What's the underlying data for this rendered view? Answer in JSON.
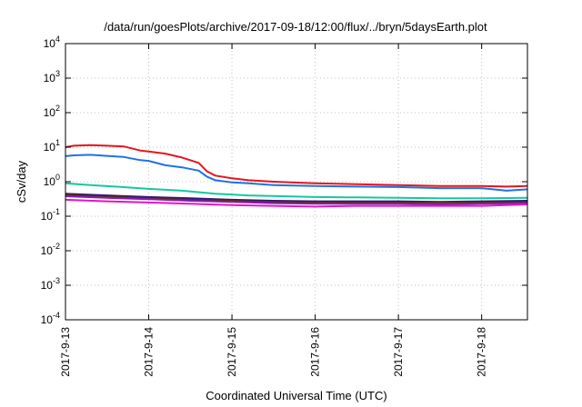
{
  "chart_data": {
    "type": "line",
    "title": "/data/run/goesPlots/archive/2017-09-18/12:00/flux/../bryn/5daysEarth.plot",
    "xlabel": "Coordinated Universal Time (UTC)",
    "ylabel": "cSv/day",
    "yscale": "log",
    "ylim": [
      0.0001,
      10000
    ],
    "xlim": [
      0,
      5.55
    ],
    "grid": true,
    "legend": "none",
    "y_ticks": [
      {
        "value": 0.0001,
        "base": "10",
        "exp": "-4"
      },
      {
        "value": 0.001,
        "base": "10",
        "exp": "-3"
      },
      {
        "value": 0.01,
        "base": "10",
        "exp": "-2"
      },
      {
        "value": 0.1,
        "base": "10",
        "exp": "-1"
      },
      {
        "value": 1,
        "base": "10",
        "exp": "0"
      },
      {
        "value": 10,
        "base": "10",
        "exp": "1"
      },
      {
        "value": 100,
        "base": "10",
        "exp": "2"
      },
      {
        "value": 1000,
        "base": "10",
        "exp": "3"
      },
      {
        "value": 10000,
        "base": "10",
        "exp": "4"
      }
    ],
    "x_ticks": [
      {
        "value": 0,
        "label": "2017-9-13"
      },
      {
        "value": 1,
        "label": "2017-9-14"
      },
      {
        "value": 2,
        "label": "2017-9-15"
      },
      {
        "value": 3,
        "label": "2017-9-16"
      },
      {
        "value": 4,
        "label": "2017-9-17"
      },
      {
        "value": 5,
        "label": "2017-9-18"
      }
    ],
    "series": [
      {
        "color": "#e8141c",
        "x": [
          0,
          0.1,
          0.3,
          0.5,
          0.7,
          0.9,
          1.0,
          1.2,
          1.4,
          1.6,
          1.7,
          1.8,
          2.0,
          2.2,
          2.5,
          3.0,
          3.5,
          4.0,
          4.5,
          5.0,
          5.3,
          5.55
        ],
        "y": [
          10,
          11,
          11.5,
          11,
          10.5,
          8,
          7.5,
          6.5,
          5,
          3.5,
          2,
          1.5,
          1.25,
          1.1,
          1.0,
          0.9,
          0.85,
          0.8,
          0.75,
          0.75,
          0.72,
          0.75
        ]
      },
      {
        "color": "#1c72e6",
        "x": [
          0,
          0.1,
          0.3,
          0.5,
          0.7,
          0.9,
          1.0,
          1.2,
          1.4,
          1.6,
          1.7,
          1.8,
          2.0,
          2.2,
          2.5,
          3.0,
          3.5,
          4.0,
          4.5,
          5.0,
          5.3,
          5.55
        ],
        "y": [
          5.5,
          5.8,
          6,
          5.6,
          5.2,
          4.2,
          4.0,
          3.0,
          2.6,
          2.1,
          1.4,
          1.1,
          0.95,
          0.9,
          0.8,
          0.75,
          0.72,
          0.7,
          0.65,
          0.65,
          0.55,
          0.6
        ]
      },
      {
        "color": "#14c8a0",
        "x": [
          0,
          0.3,
          0.6,
          1.0,
          1.4,
          1.8,
          2.2,
          2.6,
          3.0,
          3.5,
          4.0,
          4.5,
          5.0,
          5.55
        ],
        "y": [
          0.9,
          0.8,
          0.72,
          0.62,
          0.55,
          0.45,
          0.4,
          0.38,
          0.36,
          0.35,
          0.34,
          0.33,
          0.33,
          0.34
        ]
      },
      {
        "color": "#2a1a78",
        "x": [
          0,
          0.5,
          1.0,
          1.5,
          2.0,
          2.5,
          3.0,
          3.5,
          4.0,
          4.5,
          5.0,
          5.55
        ],
        "y": [
          0.45,
          0.4,
          0.36,
          0.33,
          0.3,
          0.28,
          0.27,
          0.27,
          0.27,
          0.26,
          0.27,
          0.28
        ]
      },
      {
        "color": "#5a2a1a",
        "x": [
          0,
          0.5,
          1.0,
          1.5,
          2.0,
          2.5,
          3.0,
          3.5,
          4.0,
          4.5,
          5.0,
          5.55
        ],
        "y": [
          0.42,
          0.37,
          0.33,
          0.3,
          0.28,
          0.26,
          0.25,
          0.25,
          0.25,
          0.25,
          0.25,
          0.26
        ]
      },
      {
        "color": "#8a1ab8",
        "x": [
          0,
          0.5,
          1.0,
          1.5,
          2.0,
          2.5,
          3.0,
          3.5,
          4.0,
          4.5,
          5.0,
          5.55
        ],
        "y": [
          0.38,
          0.34,
          0.31,
          0.28,
          0.26,
          0.24,
          0.23,
          0.23,
          0.23,
          0.22,
          0.23,
          0.24
        ]
      },
      {
        "color": "#e414c8",
        "x": [
          0,
          0.5,
          1.0,
          1.5,
          2.0,
          2.5,
          3.0,
          3.5,
          4.0,
          4.5,
          5.0,
          5.55
        ],
        "y": [
          0.3,
          0.27,
          0.25,
          0.23,
          0.21,
          0.2,
          0.19,
          0.2,
          0.2,
          0.2,
          0.2,
          0.22
        ]
      }
    ]
  }
}
